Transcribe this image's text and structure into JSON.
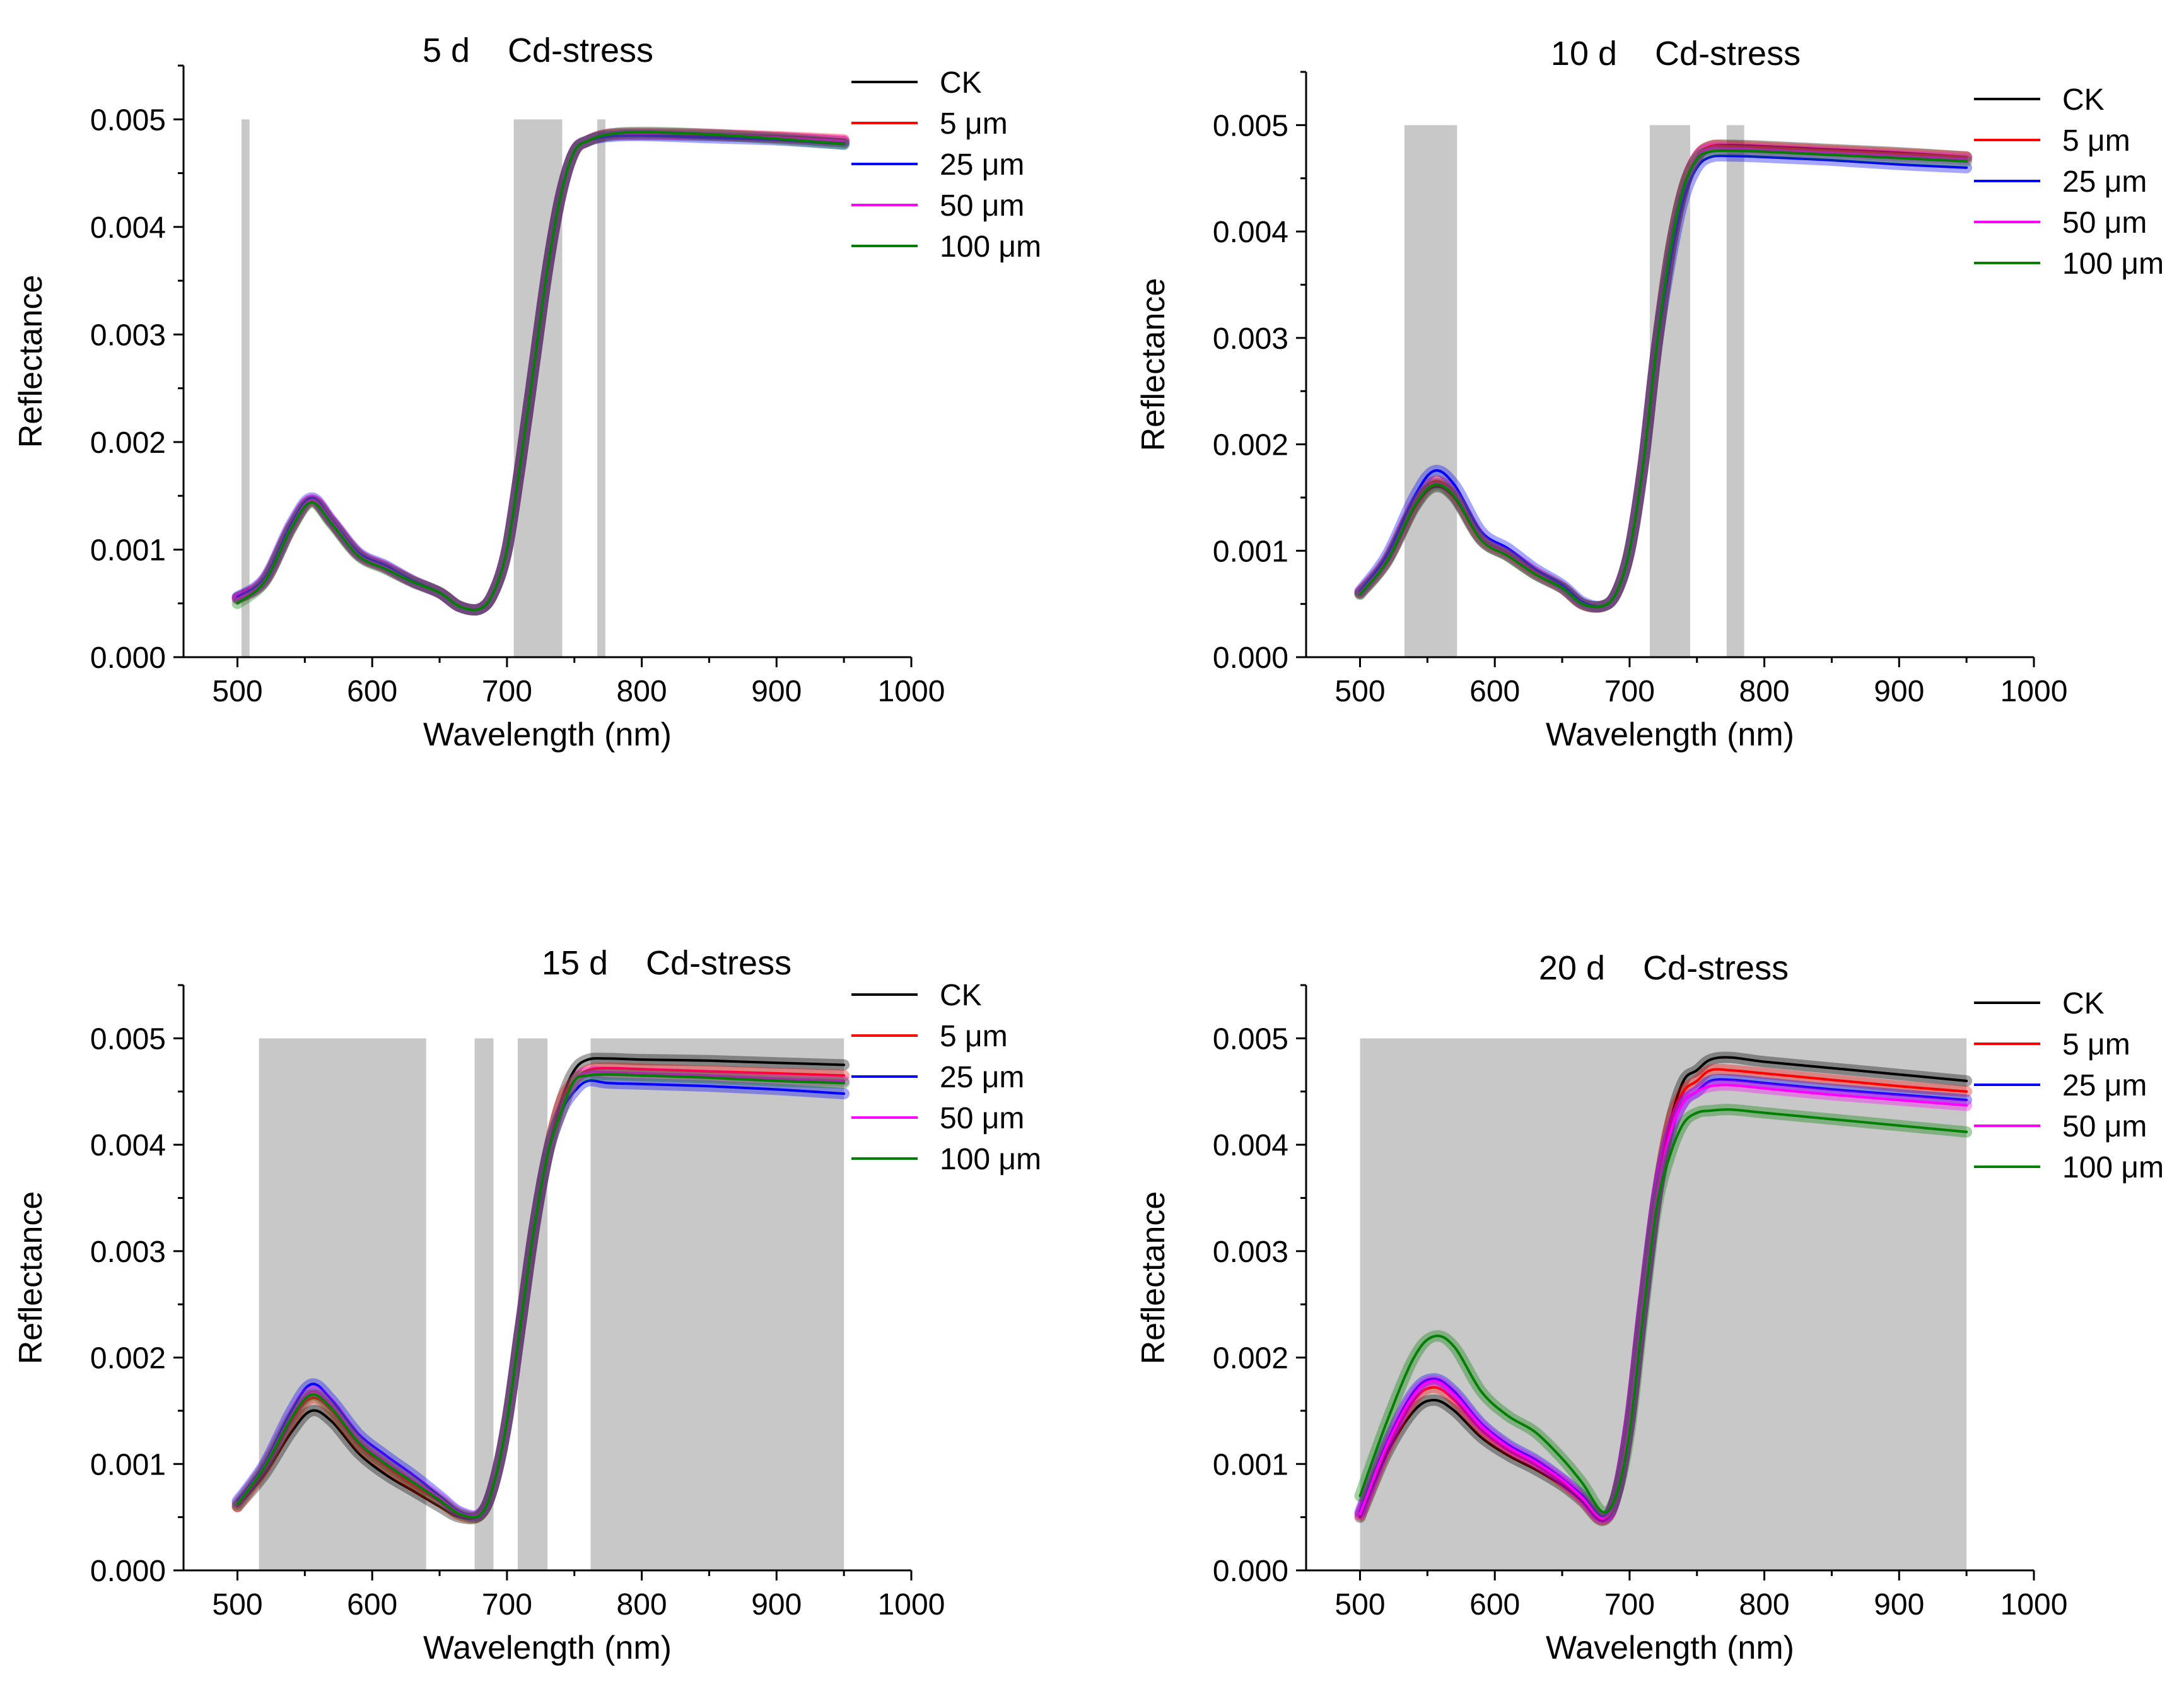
{
  "figure": {
    "background": "#ffffff",
    "band_color": "#c8c8c8"
  },
  "legend": [
    {
      "label": "CK",
      "color": "#000000"
    },
    {
      "label": "5 μm",
      "color": "#ff0000"
    },
    {
      "label": "25 μm",
      "color": "#0000ff"
    },
    {
      "label": "50 μm",
      "color": "#ff00ff"
    },
    {
      "label": "100 μm",
      "color": "#008000"
    }
  ],
  "chart_data": [
    {
      "type": "line",
      "title": "5 d    Cd-stress",
      "xlabel": "Wavelength (nm)",
      "ylabel": "Reflectance",
      "xlim": [
        460,
        1000
      ],
      "ylim": [
        0,
        0.0055
      ],
      "xticks": [
        500,
        600,
        700,
        800,
        900,
        1000
      ],
      "xtick_labels": [
        "500",
        "600",
        "700",
        "800",
        "900",
        "1000"
      ],
      "yticks": [
        0,
        0.001,
        0.002,
        0.003,
        0.004,
        0.005
      ],
      "ytick_labels": [
        "0.000",
        "0.001",
        "0.002",
        "0.003",
        "0.004",
        "0.005"
      ],
      "bands": [
        [
          503,
          509
        ],
        [
          705,
          741
        ],
        [
          767,
          773
        ]
      ],
      "band_top": 0.005,
      "legend_position": "top-right",
      "x": [
        500,
        520,
        540,
        555,
        570,
        590,
        610,
        630,
        650,
        665,
        680,
        690,
        700,
        710,
        720,
        730,
        740,
        750,
        760,
        775,
        800,
        850,
        900,
        950
      ],
      "series": [
        {
          "name": "CK",
          "values": [
            0.00055,
            0.0007,
            0.0012,
            0.00145,
            0.00125,
            0.00095,
            0.00083,
            0.0007,
            0.0006,
            0.00047,
            0.00045,
            0.0006,
            0.001,
            0.0018,
            0.0027,
            0.0036,
            0.0043,
            0.0047,
            0.0048,
            0.00485,
            0.00486,
            0.00485,
            0.00483,
            0.00479
          ]
        },
        {
          "name": "5 μm",
          "values": [
            0.00055,
            0.00072,
            0.00122,
            0.00146,
            0.00126,
            0.00096,
            0.00084,
            0.00071,
            0.0006,
            0.00047,
            0.00045,
            0.0006,
            0.001,
            0.0018,
            0.0027,
            0.0036,
            0.0043,
            0.0047,
            0.0048,
            0.00486,
            0.00487,
            0.00486,
            0.00484,
            0.00481
          ]
        },
        {
          "name": "25 μm",
          "values": [
            0.00056,
            0.00073,
            0.00124,
            0.00148,
            0.00127,
            0.00097,
            0.00085,
            0.00071,
            0.0006,
            0.00047,
            0.00045,
            0.0006,
            0.001,
            0.0018,
            0.0027,
            0.0036,
            0.0043,
            0.0047,
            0.0048,
            0.00484,
            0.00485,
            0.00483,
            0.00481,
            0.00477
          ]
        },
        {
          "name": "50 μm",
          "values": [
            0.00054,
            0.00071,
            0.00121,
            0.00146,
            0.00126,
            0.00095,
            0.00083,
            0.0007,
            0.0006,
            0.00047,
            0.00045,
            0.0006,
            0.001,
            0.0018,
            0.0027,
            0.0036,
            0.0043,
            0.0047,
            0.0048,
            0.00486,
            0.00487,
            0.00486,
            0.00483,
            0.0048
          ]
        },
        {
          "name": "100 μm",
          "values": [
            0.0005,
            0.0007,
            0.0012,
            0.00144,
            0.00124,
            0.00094,
            0.00082,
            0.0007,
            0.0006,
            0.00047,
            0.00045,
            0.0006,
            0.001,
            0.0018,
            0.0027,
            0.0036,
            0.0043,
            0.0047,
            0.0048,
            0.00486,
            0.00488,
            0.00486,
            0.00482,
            0.00477
          ]
        }
      ]
    },
    {
      "type": "line",
      "title": "10 d    Cd-stress",
      "xlabel": "Wavelength (nm)",
      "ylabel": "Reflectance",
      "xlim": [
        460,
        1000
      ],
      "ylim": [
        0,
        0.0055
      ],
      "xticks": [
        500,
        600,
        700,
        800,
        900,
        1000
      ],
      "xtick_labels": [
        "500",
        "600",
        "700",
        "800",
        "900",
        "1000"
      ],
      "yticks": [
        0,
        0.001,
        0.002,
        0.003,
        0.004,
        0.005
      ],
      "ytick_labels": [
        "0.000",
        "0.001",
        "0.002",
        "0.003",
        "0.004",
        "0.005"
      ],
      "bands": [
        [
          533,
          572
        ],
        [
          715,
          745
        ],
        [
          772,
          785
        ]
      ],
      "band_top": 0.005,
      "legend_position": "top-right",
      "x": [
        500,
        520,
        540,
        555,
        570,
        590,
        610,
        630,
        650,
        665,
        680,
        690,
        700,
        710,
        720,
        730,
        740,
        750,
        760,
        775,
        800,
        850,
        900,
        950
      ],
      "series": [
        {
          "name": "CK",
          "values": [
            0.0006,
            0.0009,
            0.0014,
            0.0016,
            0.0015,
            0.0011,
            0.00095,
            0.00078,
            0.00065,
            0.0005,
            0.00048,
            0.0006,
            0.001,
            0.0018,
            0.0029,
            0.0038,
            0.0044,
            0.0047,
            0.0048,
            0.00481,
            0.0048,
            0.00477,
            0.00474,
            0.0047
          ]
        },
        {
          "name": "5 μm",
          "values": [
            0.00061,
            0.00092,
            0.00143,
            0.00165,
            0.00153,
            0.00112,
            0.00097,
            0.0008,
            0.00066,
            0.0005,
            0.00048,
            0.0006,
            0.001,
            0.0018,
            0.0029,
            0.0038,
            0.0044,
            0.0047,
            0.0048,
            0.0048,
            0.00479,
            0.00476,
            0.00473,
            0.0047
          ]
        },
        {
          "name": "25 μm",
          "values": [
            0.00062,
            0.00096,
            0.0015,
            0.00175,
            0.00162,
            0.00118,
            0.00102,
            0.00083,
            0.00068,
            0.00052,
            0.00048,
            0.0006,
            0.001,
            0.0018,
            0.0029,
            0.0037,
            0.0043,
            0.0046,
            0.0047,
            0.00471,
            0.0047,
            0.00467,
            0.00463,
            0.0046
          ]
        },
        {
          "name": "50 μm",
          "values": [
            0.0006,
            0.00091,
            0.00142,
            0.00163,
            0.00152,
            0.00111,
            0.00096,
            0.00079,
            0.00065,
            0.0005,
            0.00048,
            0.0006,
            0.001,
            0.0018,
            0.0029,
            0.0038,
            0.0044,
            0.0047,
            0.00478,
            0.00478,
            0.00477,
            0.00474,
            0.00471,
            0.00468
          ]
        },
        {
          "name": "100 μm",
          "values": [
            0.00059,
            0.0009,
            0.00141,
            0.00162,
            0.00151,
            0.0011,
            0.00095,
            0.00078,
            0.00065,
            0.0005,
            0.00048,
            0.0006,
            0.001,
            0.0018,
            0.0029,
            0.0038,
            0.0044,
            0.00468,
            0.00475,
            0.00476,
            0.00475,
            0.00472,
            0.00469,
            0.00466
          ]
        }
      ]
    },
    {
      "type": "line",
      "title": "15 d    Cd-stress",
      "xlabel": "Wavelength (nm)",
      "ylabel": "Reflectance",
      "xlim": [
        460,
        1000
      ],
      "ylim": [
        0,
        0.0055
      ],
      "xticks": [
        500,
        600,
        700,
        800,
        900,
        1000
      ],
      "xtick_labels": [
        "500",
        "600",
        "700",
        "800",
        "900",
        "1000"
      ],
      "yticks": [
        0,
        0.001,
        0.002,
        0.003,
        0.004,
        0.005
      ],
      "ytick_labels": [
        "0.000",
        "0.001",
        "0.002",
        "0.003",
        "0.004",
        "0.005"
      ],
      "bands": [
        [
          516,
          640
        ],
        [
          676,
          690
        ],
        [
          708,
          730
        ],
        [
          762,
          950
        ]
      ],
      "band_top": 0.005,
      "legend_position": "top-right",
      "x": [
        500,
        520,
        540,
        555,
        570,
        590,
        610,
        630,
        650,
        665,
        680,
        690,
        700,
        710,
        720,
        730,
        740,
        750,
        760,
        775,
        800,
        850,
        900,
        950
      ],
      "series": [
        {
          "name": "CK",
          "values": [
            0.0006,
            0.0009,
            0.0013,
            0.0015,
            0.0014,
            0.0011,
            0.0009,
            0.00075,
            0.0006,
            0.0005,
            0.00052,
            0.0008,
            0.0014,
            0.0023,
            0.0032,
            0.0039,
            0.0044,
            0.0047,
            0.0048,
            0.00481,
            0.0048,
            0.00479,
            0.00477,
            0.00475
          ]
        },
        {
          "name": "5 μm",
          "values": [
            0.0006,
            0.00095,
            0.0014,
            0.00162,
            0.0015,
            0.00118,
            0.00098,
            0.0008,
            0.00065,
            0.00052,
            0.00052,
            0.0008,
            0.0014,
            0.0023,
            0.0032,
            0.0039,
            0.0044,
            0.0046,
            0.0047,
            0.00472,
            0.00471,
            0.00469,
            0.00467,
            0.00465
          ]
        },
        {
          "name": "25 μm",
          "values": [
            0.00065,
            0.001,
            0.0015,
            0.00175,
            0.0016,
            0.00128,
            0.00108,
            0.0009,
            0.0007,
            0.00055,
            0.00053,
            0.0008,
            0.0014,
            0.0023,
            0.0032,
            0.0039,
            0.0043,
            0.0045,
            0.0046,
            0.00458,
            0.00457,
            0.00455,
            0.00452,
            0.00448
          ]
        },
        {
          "name": "50 μm",
          "values": [
            0.00063,
            0.00098,
            0.00145,
            0.00168,
            0.00155,
            0.00122,
            0.00102,
            0.00085,
            0.00068,
            0.00054,
            0.00053,
            0.0008,
            0.0014,
            0.0023,
            0.0032,
            0.0039,
            0.0043,
            0.0046,
            0.00468,
            0.00468,
            0.00467,
            0.00465,
            0.00462,
            0.0046
          ]
        },
        {
          "name": "100 μm",
          "values": [
            0.00062,
            0.00097,
            0.00143,
            0.00165,
            0.00152,
            0.0012,
            0.001,
            0.00083,
            0.00066,
            0.00053,
            0.00052,
            0.0008,
            0.0014,
            0.0023,
            0.0032,
            0.0039,
            0.0043,
            0.0046,
            0.00465,
            0.00466,
            0.00465,
            0.00463,
            0.0046,
            0.00458
          ]
        }
      ]
    },
    {
      "type": "line",
      "title": "20 d    Cd-stress",
      "xlabel": "Wavelength (nm)",
      "ylabel": "Reflectance",
      "xlim": [
        460,
        1000
      ],
      "ylim": [
        0,
        0.0055
      ],
      "xticks": [
        500,
        600,
        700,
        800,
        900,
        1000
      ],
      "xtick_labels": [
        "500",
        "600",
        "700",
        "800",
        "900",
        "1000"
      ],
      "yticks": [
        0,
        0.001,
        0.002,
        0.003,
        0.004,
        0.005
      ],
      "ytick_labels": [
        "0.000",
        "0.001",
        "0.002",
        "0.003",
        "0.004",
        "0.005"
      ],
      "bands": [
        [
          500,
          950
        ]
      ],
      "band_top": 0.005,
      "legend_position": "top-right",
      "x": [
        500,
        520,
        540,
        555,
        570,
        590,
        610,
        630,
        650,
        665,
        680,
        690,
        700,
        710,
        720,
        730,
        740,
        750,
        760,
        775,
        800,
        850,
        900,
        950
      ],
      "series": [
        {
          "name": "CK",
          "values": [
            0.0005,
            0.0011,
            0.0015,
            0.0016,
            0.0015,
            0.00125,
            0.00108,
            0.00095,
            0.0008,
            0.00065,
            0.00047,
            0.0007,
            0.0014,
            0.0025,
            0.0035,
            0.0042,
            0.0046,
            0.0047,
            0.0048,
            0.00482,
            0.00478,
            0.00472,
            0.00466,
            0.0046
          ]
        },
        {
          "name": "5 μm",
          "values": [
            0.00052,
            0.00115,
            0.0016,
            0.00172,
            0.0016,
            0.00132,
            0.00113,
            0.001,
            0.00083,
            0.00067,
            0.00048,
            0.0007,
            0.0014,
            0.0025,
            0.0035,
            0.0042,
            0.0045,
            0.0046,
            0.0047,
            0.0047,
            0.00467,
            0.00461,
            0.00455,
            0.0045
          ]
        },
        {
          "name": "25 μm",
          "values": [
            0.00055,
            0.0012,
            0.00168,
            0.0018,
            0.00168,
            0.00138,
            0.00118,
            0.00104,
            0.00086,
            0.0007,
            0.0005,
            0.0007,
            0.0014,
            0.0025,
            0.0035,
            0.0041,
            0.0044,
            0.0045,
            0.0046,
            0.00461,
            0.00458,
            0.00452,
            0.00447,
            0.00442
          ]
        },
        {
          "name": "50 μm",
          "values": [
            0.00053,
            0.00118,
            0.00165,
            0.00178,
            0.00165,
            0.00136,
            0.00116,
            0.00102,
            0.00085,
            0.00068,
            0.00049,
            0.0007,
            0.0014,
            0.0025,
            0.0035,
            0.0041,
            0.0044,
            0.0045,
            0.00455,
            0.00456,
            0.00453,
            0.00447,
            0.00442,
            0.00437
          ]
        },
        {
          "name": "100 μm",
          "values": [
            0.0007,
            0.0014,
            0.002,
            0.0022,
            0.0021,
            0.00168,
            0.00145,
            0.0013,
            0.00105,
            0.00082,
            0.00055,
            0.0007,
            0.0013,
            0.0024,
            0.0034,
            0.0039,
            0.0042,
            0.0043,
            0.00432,
            0.00433,
            0.0043,
            0.00424,
            0.00418,
            0.00412
          ]
        }
      ]
    }
  ]
}
